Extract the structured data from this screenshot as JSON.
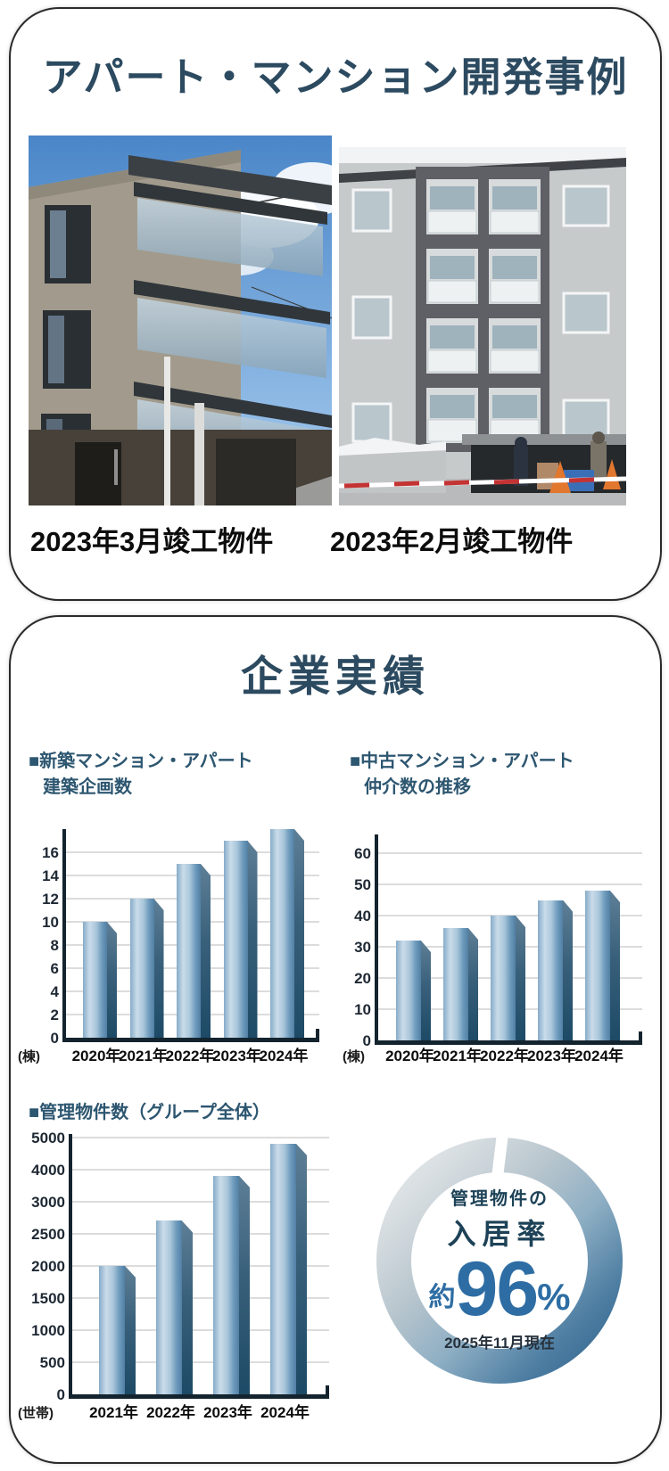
{
  "colors": {
    "heading": "#2c4a60",
    "chart_title": "#2d5670",
    "bar_front_light": "#cadcea",
    "bar_front_dark": "#517fa4",
    "bar_side_dark": "#1d4a66",
    "axis": "#14242f",
    "donut_blue": "#2a5c85",
    "donut_gray": "#d4dbdf",
    "value_blue": "#2e6da4"
  },
  "card1": {
    "title": "アパート・マンション開発事例",
    "photos": [
      {
        "caption": "2023年3月竣工物件"
      },
      {
        "caption": "2023年2月竣工物件"
      }
    ]
  },
  "card2": {
    "title": "企業実績"
  },
  "chart_data": [
    {
      "type": "bar",
      "title": "■新築マンション・アパート",
      "subtitle": "建築企画数",
      "unit_label": "(棟)",
      "categories": [
        "2020年",
        "2021年",
        "2022年",
        "2023年",
        "2024年"
      ],
      "values": [
        10,
        12,
        15,
        17,
        18
      ],
      "yticks": [
        0,
        2,
        4,
        6,
        8,
        10,
        12,
        14,
        16
      ],
      "ylim": [
        0,
        18
      ],
      "grid": true,
      "legend": "none",
      "style": "3d-gradient-bars"
    },
    {
      "type": "bar",
      "title": "■中古マンション・アパート",
      "subtitle": "仲介数の推移",
      "unit_label": "(棟)",
      "categories": [
        "2020年",
        "2021年",
        "2022年",
        "2023年",
        "2024年"
      ],
      "values": [
        32,
        36,
        40,
        45,
        48
      ],
      "yticks": [
        0,
        10,
        20,
        30,
        40,
        50,
        60
      ],
      "ylim": [
        0,
        66
      ],
      "grid": true,
      "legend": "none",
      "style": "3d-gradient-bars"
    },
    {
      "type": "bar",
      "title": "■管理物件数（グループ全体）",
      "subtitle": "",
      "unit_label": "(世帯)",
      "categories": [
        "2021年",
        "2022年",
        "2023年",
        "2024年"
      ],
      "values": [
        2000,
        2700,
        3800,
        4800
      ],
      "yticks": [
        0,
        500,
        1000,
        1500,
        2000,
        2500,
        3000,
        4000,
        5000
      ],
      "ylim": [
        0,
        5100
      ],
      "axis_note": "ticks equally spaced despite non-uniform values",
      "grid": true,
      "legend": "none",
      "style": "3d-gradient-bars"
    },
    {
      "type": "pie",
      "title": "管理物件の入居率",
      "label_line1": "管理物件の",
      "label_line2": "入居率",
      "prefix": "約",
      "value": "96",
      "unit": "％",
      "unit_display": "%",
      "value_pct": 96,
      "asof": "2025年11月現在",
      "style": "donut-gauge with top notch, gray-to-blue gradient"
    }
  ]
}
